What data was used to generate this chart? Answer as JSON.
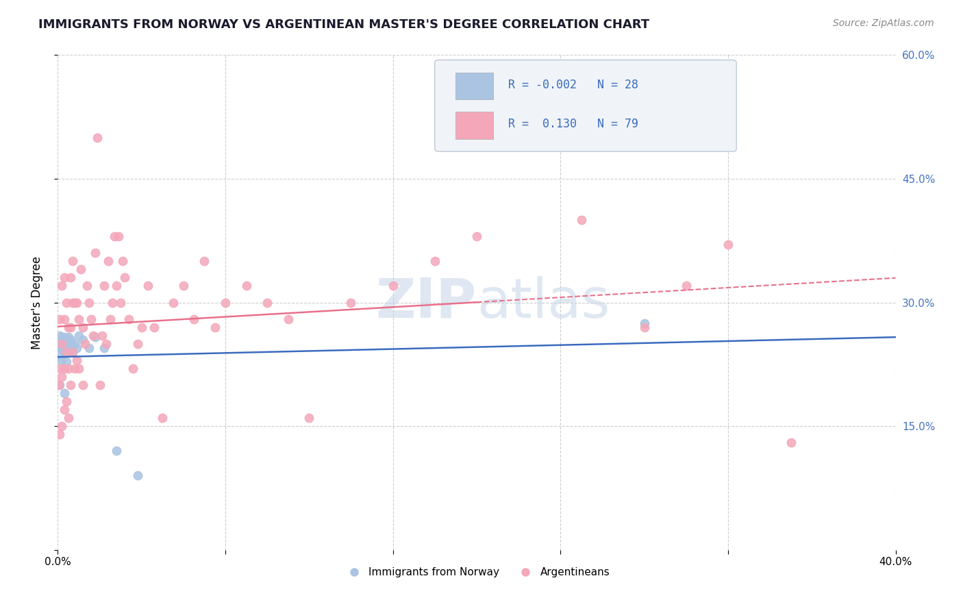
{
  "title": "IMMIGRANTS FROM NORWAY VS ARGENTINEAN MASTER'S DEGREE CORRELATION CHART",
  "source": "Source: ZipAtlas.com",
  "ylabel": "Master's Degree",
  "norway_R": -0.002,
  "norway_N": 28,
  "argentina_R": 0.13,
  "argentina_N": 79,
  "norway_color": "#aac4e2",
  "argentina_color": "#f4a7b9",
  "norway_line_color": "#3a6bbf",
  "argentina_line_color": "#e8708a",
  "watermark_color": "#c5d5e8",
  "background_color": "#ffffff",
  "xlim": [
    0.0,
    0.4
  ],
  "ylim": [
    0.0,
    0.6
  ],
  "norway_scatter_x": [
    0.0005,
    0.001,
    0.001,
    0.001,
    0.0015,
    0.002,
    0.002,
    0.002,
    0.003,
    0.003,
    0.003,
    0.004,
    0.004,
    0.005,
    0.005,
    0.006,
    0.006,
    0.007,
    0.008,
    0.009,
    0.01,
    0.012,
    0.015,
    0.018,
    0.022,
    0.028,
    0.038,
    0.28
  ],
  "norway_scatter_y": [
    0.245,
    0.25,
    0.26,
    0.2,
    0.235,
    0.245,
    0.258,
    0.23,
    0.24,
    0.258,
    0.19,
    0.228,
    0.25,
    0.245,
    0.258,
    0.25,
    0.255,
    0.24,
    0.25,
    0.245,
    0.26,
    0.255,
    0.245,
    0.258,
    0.245,
    0.12,
    0.09,
    0.275
  ],
  "argentina_scatter_x": [
    0.0005,
    0.001,
    0.001,
    0.001,
    0.002,
    0.002,
    0.002,
    0.002,
    0.003,
    0.003,
    0.003,
    0.003,
    0.004,
    0.004,
    0.004,
    0.005,
    0.005,
    0.005,
    0.006,
    0.006,
    0.006,
    0.007,
    0.007,
    0.007,
    0.008,
    0.008,
    0.009,
    0.009,
    0.01,
    0.01,
    0.011,
    0.012,
    0.012,
    0.013,
    0.014,
    0.015,
    0.016,
    0.017,
    0.018,
    0.019,
    0.02,
    0.021,
    0.022,
    0.023,
    0.024,
    0.025,
    0.026,
    0.027,
    0.028,
    0.029,
    0.03,
    0.031,
    0.032,
    0.034,
    0.036,
    0.038,
    0.04,
    0.043,
    0.046,
    0.05,
    0.055,
    0.06,
    0.065,
    0.07,
    0.075,
    0.08,
    0.09,
    0.1,
    0.11,
    0.12,
    0.14,
    0.16,
    0.18,
    0.2,
    0.25,
    0.28,
    0.3,
    0.32,
    0.35
  ],
  "argentina_scatter_y": [
    0.2,
    0.14,
    0.22,
    0.28,
    0.15,
    0.21,
    0.25,
    0.32,
    0.17,
    0.22,
    0.28,
    0.33,
    0.18,
    0.24,
    0.3,
    0.16,
    0.22,
    0.27,
    0.2,
    0.27,
    0.33,
    0.24,
    0.3,
    0.35,
    0.22,
    0.3,
    0.23,
    0.3,
    0.22,
    0.28,
    0.34,
    0.2,
    0.27,
    0.25,
    0.32,
    0.3,
    0.28,
    0.26,
    0.36,
    0.5,
    0.2,
    0.26,
    0.32,
    0.25,
    0.35,
    0.28,
    0.3,
    0.38,
    0.32,
    0.38,
    0.3,
    0.35,
    0.33,
    0.28,
    0.22,
    0.25,
    0.27,
    0.32,
    0.27,
    0.16,
    0.3,
    0.32,
    0.28,
    0.35,
    0.27,
    0.3,
    0.32,
    0.3,
    0.28,
    0.16,
    0.3,
    0.32,
    0.35,
    0.38,
    0.4,
    0.27,
    0.32,
    0.37,
    0.13
  ]
}
